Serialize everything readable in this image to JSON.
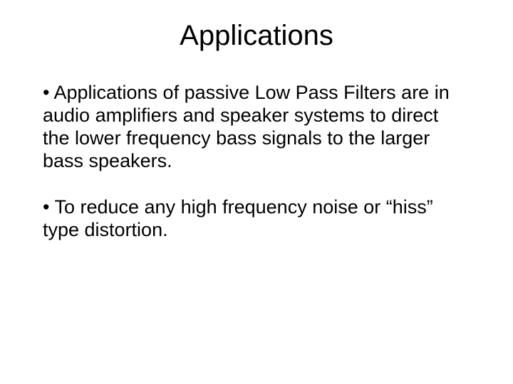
{
  "slide": {
    "title": "Applications",
    "title_fontsize": 40,
    "body_fontsize": 27,
    "text_color": "#000000",
    "background_color": "#ffffff",
    "font_family": "Arial",
    "bullets": [
      "• Applications of passive Low Pass Filters are in audio amplifiers and speaker systems to direct the lower frequency bass signals to the larger bass speakers.",
      "• To reduce any high frequency noise or “hiss” type distortion."
    ]
  }
}
